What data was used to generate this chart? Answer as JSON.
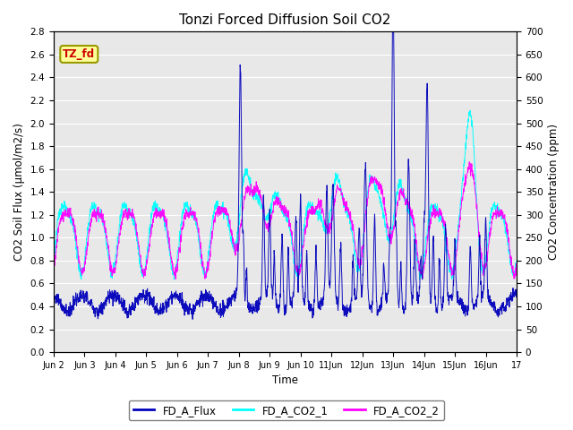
{
  "title": "Tonzi Forced Diffusion Soil CO2",
  "xlabel": "Time",
  "ylabel_left": "CO2 Soil Flux (μmol/m2/s)",
  "ylabel_right": "CO2 Concentration (ppm)",
  "ylim_left": [
    0.0,
    2.8
  ],
  "ylim_right": [
    0,
    700
  ],
  "yticks_left": [
    0.0,
    0.2,
    0.4,
    0.6,
    0.8,
    1.0,
    1.2,
    1.4,
    1.6,
    1.8,
    2.0,
    2.2,
    2.4,
    2.6,
    2.8
  ],
  "yticks_right": [
    0,
    50,
    100,
    150,
    200,
    250,
    300,
    350,
    400,
    450,
    500,
    550,
    600,
    650,
    700
  ],
  "xtick_positions": [
    0,
    1,
    2,
    3,
    4,
    5,
    6,
    7,
    8,
    9,
    10,
    11,
    12,
    13,
    14,
    15
  ],
  "xtick_labels": [
    "Jun 2",
    "Jun 3",
    "Jun 4",
    "Jun 5",
    "Jun 6",
    "Jun 7",
    "Jun 8",
    "Jun 9",
    "Jun 10",
    "11Jun",
    "12Jun",
    "13Jun",
    "14Jun",
    "15Jun",
    "16Jun",
    "17"
  ],
  "colors": {
    "flux": "#0000BB",
    "co2_1": "#00FFFF",
    "co2_2": "#FF00FF",
    "background": "#E8E8E8",
    "tag_bg": "#FFFF99",
    "tag_border": "#999900",
    "tag_text": "#CC0000"
  },
  "tag_text": "TZ_fd",
  "legend": [
    "FD_A_Flux",
    "FD_A_CO2_1",
    "FD_A_CO2_2"
  ],
  "n_points": 2000,
  "figsize": [
    6.4,
    4.8
  ],
  "dpi": 100
}
